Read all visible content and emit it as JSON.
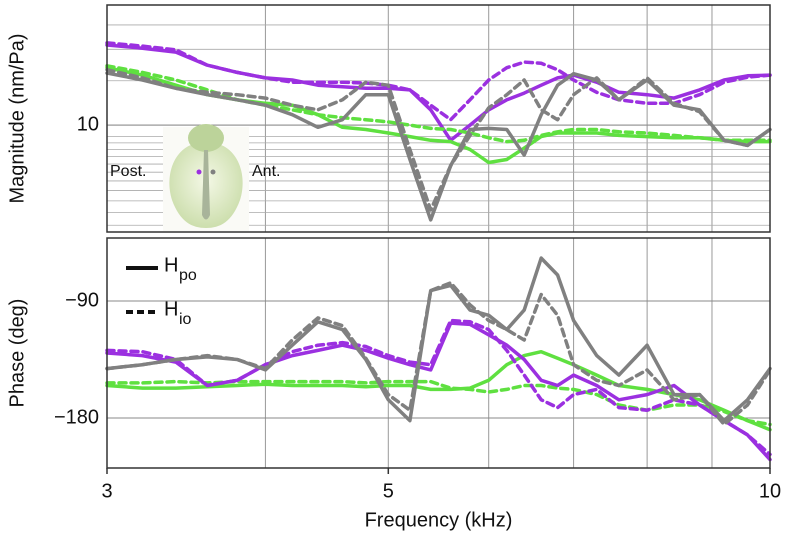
{
  "chart_data": [
    {
      "type": "line",
      "ylabel": "Magnitude (nm/Pa)",
      "ylog": true,
      "xlog": true,
      "grid": true,
      "xlim": [
        3,
        10
      ],
      "ylim": [
        3.76,
        30
      ],
      "yticks": [
        10
      ],
      "annotations": [
        "Post.",
        "Ant."
      ],
      "x": [
        3,
        3.2,
        3.4,
        3.6,
        3.8,
        4,
        4.2,
        4.4,
        4.6,
        4.8,
        5,
        5.2,
        5.4,
        5.6,
        5.8,
        6,
        6.2,
        6.4,
        6.6,
        6.8,
        7,
        7.3,
        7.6,
        8,
        8.4,
        8.8,
        9.2,
        9.6,
        10
      ],
      "series": [
        {
          "color": "#9b30e0",
          "dashed": false,
          "values": [
            20.8,
            20.2,
            19.5,
            17.3,
            16.2,
            15.4,
            15.1,
            14.4,
            14.2,
            14.0,
            14.0,
            13.8,
            11.5,
            8.7,
            10.0,
            11.5,
            12.6,
            13.4,
            14.4,
            15.4,
            15.8,
            14.8,
            13.5,
            13.2,
            12.8,
            13.8,
            15.1,
            15.7,
            15.8
          ]
        },
        {
          "color": "#9b30e0",
          "dashed": true,
          "values": [
            21.2,
            20.6,
            19.9,
            17.3,
            16.2,
            15.4,
            14.8,
            14.8,
            14.8,
            14.7,
            14.4,
            13.8,
            12.0,
            10.5,
            12.6,
            15.1,
            16.9,
            17.8,
            17.6,
            16.6,
            15.1,
            13.5,
            12.6,
            12.2,
            12.2,
            13.2,
            14.8,
            15.5,
            15.8
          ]
        },
        {
          "color": "#5fe040",
          "dashed": false,
          "values": [
            16.9,
            15.8,
            14.4,
            13.2,
            12.6,
            12.2,
            12.0,
            11.0,
            9.8,
            9.6,
            9.3,
            9.0,
            8.7,
            8.6,
            8.0,
            7.1,
            7.3,
            8.1,
            9.0,
            9.3,
            9.3,
            9.3,
            9.1,
            9.0,
            8.9,
            8.9,
            8.7,
            8.6,
            8.6
          ]
        },
        {
          "color": "#5fe040",
          "dashed": true,
          "values": [
            17.2,
            16.2,
            15.1,
            13.8,
            12.6,
            12.0,
            11.5,
            11.0,
            10.7,
            10.5,
            10.3,
            10.0,
            9.7,
            9.6,
            9.3,
            8.9,
            8.6,
            8.7,
            9.1,
            9.4,
            9.6,
            9.6,
            9.4,
            9.3,
            9.1,
            8.9,
            8.7,
            8.7,
            8.7
          ]
        },
        {
          "color": "#808080",
          "dashed": false,
          "values": [
            16.1,
            15.1,
            14.0,
            13.2,
            12.6,
            12.0,
            11.0,
            9.8,
            10.5,
            13.2,
            13.2,
            7.3,
            4.2,
            6.9,
            9.6,
            9.7,
            9.6,
            7.6,
            11.0,
            14.4,
            16.0,
            15.1,
            12.6,
            15.1,
            12.0,
            11.5,
            8.7,
            8.3,
            9.6
          ]
        },
        {
          "color": "#808080",
          "dashed": true,
          "values": [
            16.6,
            15.4,
            14.0,
            13.5,
            13.2,
            12.8,
            12.0,
            11.5,
            12.6,
            14.8,
            14.4,
            8.0,
            4.6,
            6.9,
            9.1,
            11.7,
            13.2,
            15.1,
            11.5,
            10.5,
            13.2,
            15.4,
            12.6,
            15.4,
            12.2,
            11.3,
            8.7,
            8.3,
            9.6
          ]
        }
      ]
    },
    {
      "type": "line",
      "ylabel": "Phase (deg)",
      "xlabel": "Frequency (kHz)",
      "xlog": true,
      "grid": true,
      "xlim": [
        3,
        10
      ],
      "ylim": [
        -218.5,
        -41.5
      ],
      "xticks": [
        3,
        5,
        10
      ],
      "yticks": [
        {
          "value": -90,
          "label": "−90"
        },
        {
          "value": -180,
          "label": "−180"
        }
      ],
      "legend": [
        {
          "label": "H",
          "subscript": "po",
          "dashed": false
        },
        {
          "label": "H",
          "subscript": "io",
          "dashed": true
        }
      ],
      "x": [
        3,
        3.2,
        3.4,
        3.6,
        3.8,
        4,
        4.2,
        4.4,
        4.6,
        4.8,
        5,
        5.2,
        5.4,
        5.6,
        5.8,
        6,
        6.2,
        6.4,
        6.6,
        6.8,
        7,
        7.3,
        7.6,
        8,
        8.4,
        8.8,
        9.2,
        9.6,
        10
      ],
      "series": [
        {
          "color": "#5fe040",
          "dashed": false,
          "values": [
            -155,
            -157,
            -157,
            -156,
            -155,
            -154,
            -155,
            -155,
            -155,
            -156,
            -155,
            -155,
            -158,
            -158,
            -157,
            -151,
            -139,
            -132,
            -129,
            -134,
            -139,
            -147,
            -155,
            -158,
            -162,
            -166,
            -174,
            -182,
            -189
          ]
        },
        {
          "color": "#5fe040",
          "dashed": true,
          "values": [
            -153,
            -153,
            -152,
            -153,
            -152,
            -152,
            -152,
            -152,
            -152,
            -153,
            -152,
            -152,
            -152,
            -157,
            -158,
            -160,
            -158,
            -155,
            -155,
            -157,
            -158,
            -162,
            -170,
            -174,
            -170,
            -170,
            -175,
            -182,
            -185
          ]
        },
        {
          "color": "#9b30e0",
          "dashed": false,
          "values": [
            -130,
            -132,
            -137,
            -155,
            -151,
            -139,
            -132,
            -128,
            -124,
            -128,
            -134,
            -139,
            -143,
            -107,
            -108,
            -116,
            -124,
            -135,
            -151,
            -155,
            -147,
            -155,
            -166,
            -162,
            -155,
            -170,
            -182,
            -193,
            -212
          ]
        },
        {
          "color": "#9b30e0",
          "dashed": true,
          "values": [
            -128,
            -129,
            -135,
            -155,
            -151,
            -139,
            -129,
            -124,
            -122,
            -125,
            -132,
            -137,
            -139,
            -105,
            -106,
            -112,
            -128,
            -147,
            -166,
            -172,
            -162,
            -158,
            -172,
            -174,
            -166,
            -170,
            -182,
            -193,
            -208
          ]
        },
        {
          "color": "#808080",
          "dashed": false,
          "values": [
            -142,
            -139,
            -135,
            -133,
            -135,
            -143,
            -124,
            -106,
            -112,
            -135,
            -166,
            -182,
            -82,
            -78,
            -97,
            -101,
            -112,
            -97,
            -57,
            -70,
            -105,
            -132,
            -147,
            -124,
            -162,
            -162,
            -182,
            -166,
            -142
          ]
        },
        {
          "color": "#808080",
          "dashed": true,
          "values": [
            -142,
            -139,
            -135,
            -132,
            -135,
            -142,
            -120,
            -103,
            -109,
            -134,
            -162,
            -174,
            -82,
            -76,
            -93,
            -105,
            -112,
            -120,
            -85,
            -101,
            -139,
            -151,
            -155,
            -143,
            -166,
            -162,
            -185,
            -170,
            -143
          ]
        }
      ]
    }
  ]
}
